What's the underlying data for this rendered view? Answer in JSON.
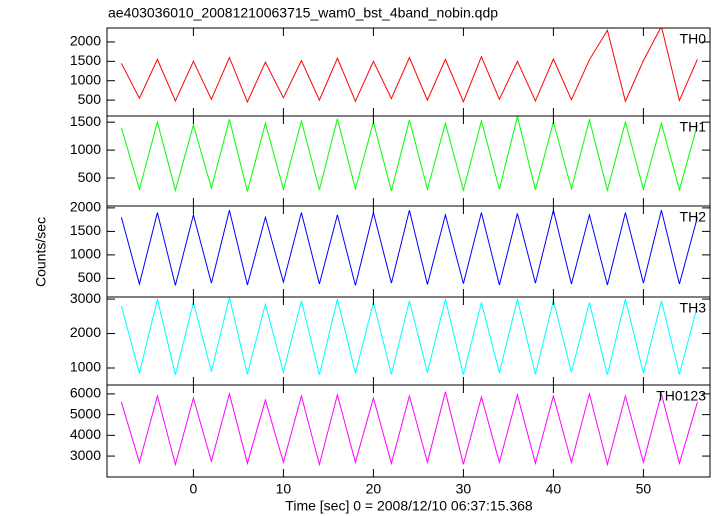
{
  "chart_data": [
    {
      "type": "line",
      "title": "ae403036010_20081210063715_wam0_bst_4band_nobin.qdp",
      "x": [
        -8,
        -6,
        -4,
        -2,
        0,
        2,
        4,
        6,
        8,
        10,
        12,
        14,
        16,
        18,
        20,
        22,
        24,
        26,
        28,
        30,
        32,
        34,
        36,
        38,
        40,
        42,
        44,
        46,
        48,
        50,
        52,
        54,
        56
      ],
      "xlim": [
        -9.6,
        57.4
      ],
      "xticks": [
        0,
        10,
        20,
        30,
        40,
        50
      ],
      "ylim": [
        90,
        2360
      ],
      "yticks": [
        500,
        1000,
        1500,
        2000
      ],
      "series": [
        {
          "name": "TH0",
          "color": "#ff0000",
          "values": [
            1450,
            550,
            1550,
            480,
            1500,
            520,
            1600,
            450,
            1480,
            560,
            1520,
            500,
            1580,
            470,
            1500,
            540,
            1600,
            500,
            1550,
            460,
            1620,
            520,
            1500,
            480,
            1560,
            510,
            1540,
            2300,
            470,
            1520,
            2400,
            490,
            1550
          ]
        }
      ]
    },
    {
      "type": "line",
      "x": [
        -8,
        -6,
        -4,
        -2,
        0,
        2,
        4,
        6,
        8,
        10,
        12,
        14,
        16,
        18,
        20,
        22,
        24,
        26,
        28,
        30,
        32,
        34,
        36,
        38,
        40,
        42,
        44,
        46,
        48,
        50,
        52,
        54,
        56
      ],
      "xlim": [
        -9.6,
        57.4
      ],
      "xticks": [
        0,
        10,
        20,
        30,
        40,
        50
      ],
      "ylim": [
        0,
        1610
      ],
      "yticks": [
        500,
        1000,
        1500
      ],
      "series": [
        {
          "name": "TH1",
          "color": "#00ff00",
          "values": [
            1400,
            300,
            1500,
            280,
            1450,
            320,
            1550,
            260,
            1480,
            300,
            1520,
            290,
            1560,
            310,
            1500,
            270,
            1540,
            300,
            1480,
            280,
            1520,
            300,
            1600,
            290,
            1500,
            310,
            1540,
            280,
            1500,
            300,
            1480,
            290,
            1450
          ]
        }
      ]
    },
    {
      "type": "line",
      "y_label": "Counts/sec",
      "x": [
        -8,
        -6,
        -4,
        -2,
        0,
        2,
        4,
        6,
        8,
        10,
        12,
        14,
        16,
        18,
        20,
        22,
        24,
        26,
        28,
        30,
        32,
        34,
        36,
        38,
        40,
        42,
        44,
        46,
        48,
        50,
        52,
        54,
        56
      ],
      "xlim": [
        -9.6,
        57.4
      ],
      "xticks": [
        0,
        10,
        20,
        30,
        40,
        50
      ],
      "ylim": [
        104,
        2040
      ],
      "yticks": [
        500,
        1000,
        1500,
        2000
      ],
      "series": [
        {
          "name": "TH2",
          "color": "#0000ff",
          "values": [
            1800,
            380,
            1900,
            350,
            1850,
            400,
            1950,
            360,
            1800,
            420,
            1900,
            380,
            1850,
            350,
            1900,
            400,
            1950,
            370,
            1850,
            390,
            1900,
            360,
            1880,
            400,
            1950,
            380,
            1850,
            360,
            1900,
            400,
            1950,
            380,
            1800
          ]
        }
      ]
    },
    {
      "type": "line",
      "x": [
        -8,
        -6,
        -4,
        -2,
        0,
        2,
        4,
        6,
        8,
        10,
        12,
        14,
        16,
        18,
        20,
        22,
        24,
        26,
        28,
        30,
        32,
        34,
        36,
        38,
        40,
        42,
        44,
        46,
        48,
        50,
        52,
        54,
        56
      ],
      "xlim": [
        -9.6,
        57.4
      ],
      "xticks": [
        0,
        10,
        20,
        30,
        40,
        50
      ],
      "ylim": [
        507,
        3060
      ],
      "yticks": [
        1000,
        2000,
        3000
      ],
      "series": [
        {
          "name": "TH3",
          "color": "#00ffff",
          "values": [
            2800,
            850,
            3000,
            800,
            2900,
            900,
            3050,
            820,
            2850,
            880,
            2950,
            800,
            3000,
            850,
            2900,
            820,
            2950,
            870,
            3000,
            800,
            2900,
            860,
            3000,
            820,
            2950,
            880,
            2900,
            800,
            3000,
            850,
            2950,
            820,
            2800
          ]
        }
      ]
    },
    {
      "type": "line",
      "x_label": "Time [sec] 0 = 2008/12/10 06:37:15.368",
      "x": [
        -8,
        -6,
        -4,
        -2,
        0,
        2,
        4,
        6,
        8,
        10,
        12,
        14,
        16,
        18,
        20,
        22,
        24,
        26,
        28,
        30,
        32,
        34,
        36,
        38,
        40,
        42,
        44,
        46,
        48,
        50,
        52,
        54,
        56
      ],
      "xlim": [
        -9.6,
        57.4
      ],
      "xticks": [
        0,
        10,
        20,
        30,
        40,
        50
      ],
      "ylim": [
        1990,
        6430
      ],
      "yticks": [
        3000,
        4000,
        5000,
        6000
      ],
      "series": [
        {
          "name": "TH0123",
          "color": "#ff00ff",
          "values": [
            5600,
            2700,
            5900,
            2600,
            5800,
            2750,
            6000,
            2650,
            5700,
            2700,
            5900,
            2600,
            5950,
            2700,
            5800,
            2650,
            5900,
            2700,
            6100,
            2600,
            5850,
            2700,
            5950,
            2650,
            5900,
            2700,
            6000,
            2600,
            5900,
            2700,
            6000,
            2650,
            5600
          ]
        }
      ]
    }
  ]
}
